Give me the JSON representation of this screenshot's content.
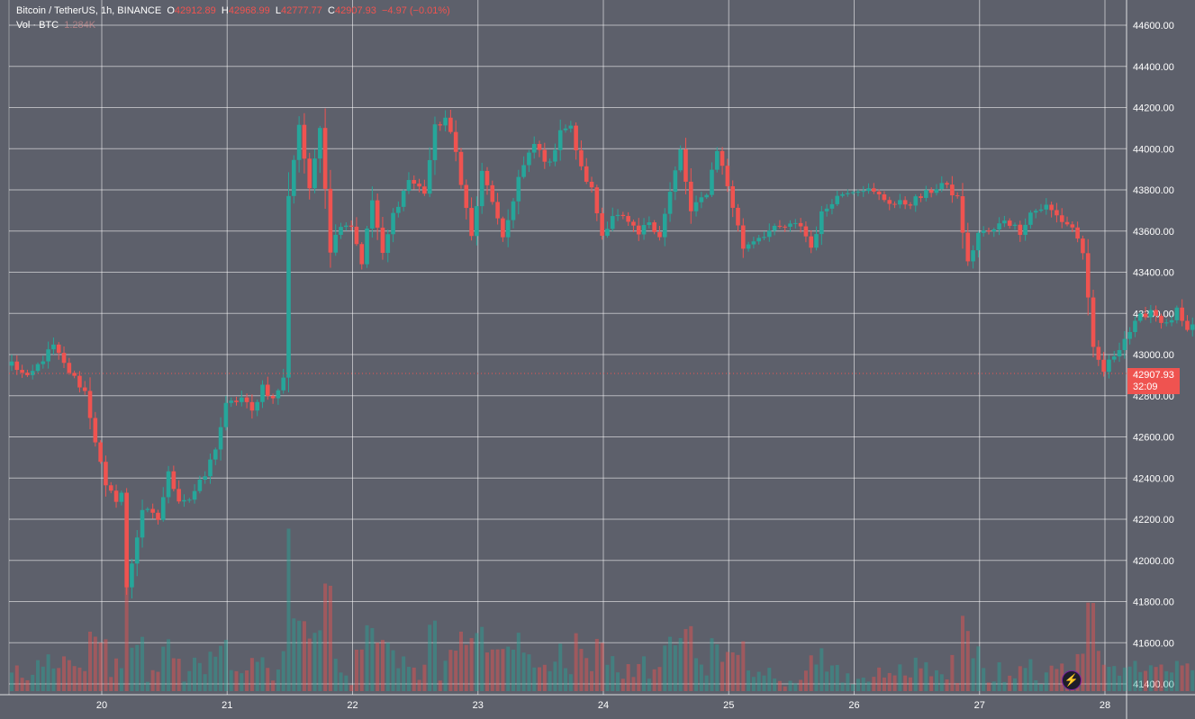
{
  "legend": {
    "symbol": "Bitcoin / TetherUS, 1h, BINANCE",
    "open_label": "O",
    "open_value": "42912.89",
    "high_label": "H",
    "high_value": "42968.99",
    "low_label": "L",
    "low_value": "42777.77",
    "close_label": "C",
    "close_value": "42907.93",
    "change": "−4.97 (−0.01%)",
    "vol_label": "Vol · BTC",
    "vol_value": "1.284K"
  },
  "last_price": {
    "price": "42907.93",
    "countdown": "32:09"
  },
  "colors": {
    "background": "#5d606b",
    "up": "#26a69a",
    "down": "#ef5350",
    "grid": "#ffffff",
    "text": "#ffffff"
  },
  "icons": {
    "flash_button": "lightning-bolt-icon"
  },
  "chart_data": {
    "type": "candlestick",
    "symbol": "Bitcoin / TetherUS",
    "interval": "1h",
    "exchange": "BINANCE",
    "x_tick_labels": [
      "20",
      "21",
      "22",
      "23",
      "24",
      "25",
      "26",
      "27",
      "28"
    ],
    "y_tick_labels": [
      "41400.00",
      "41600.00",
      "41800.00",
      "42000.00",
      "42200.00",
      "42400.00",
      "42600.00",
      "42800.00",
      "43000.00",
      "43200.00",
      "43400.00",
      "43600.00",
      "43800.00",
      "44000.00",
      "44200.00",
      "44400.00",
      "44600.00"
    ],
    "ylim": [
      41390,
      44660
    ],
    "grid": true,
    "axis_position": "right",
    "anchors": [
      [
        0,
        42960
      ],
      [
        3,
        42880
      ],
      [
        6,
        42980
      ],
      [
        8,
        43040
      ],
      [
        10,
        42950
      ],
      [
        14,
        42820
      ],
      [
        18,
        42350
      ],
      [
        20,
        42300
      ],
      [
        21,
        42330
      ],
      [
        22,
        41860
      ],
      [
        25,
        42250
      ],
      [
        28,
        42200
      ],
      [
        30,
        42420
      ],
      [
        32,
        42300
      ],
      [
        34,
        42300
      ],
      [
        37,
        42410
      ],
      [
        39,
        42550
      ],
      [
        41,
        42750
      ],
      [
        44,
        42790
      ],
      [
        46,
        42720
      ],
      [
        48,
        42850
      ],
      [
        50,
        42780
      ],
      [
        52,
        42880
      ],
      [
        53,
        43780
      ],
      [
        54,
        43950
      ],
      [
        55,
        44120
      ],
      [
        57,
        43790
      ],
      [
        59,
        44120
      ],
      [
        61,
        43510
      ],
      [
        63,
        43640
      ],
      [
        65,
        43630
      ],
      [
        67,
        43450
      ],
      [
        69,
        43750
      ],
      [
        71,
        43480
      ],
      [
        73,
        43680
      ],
      [
        76,
        43850
      ],
      [
        79,
        43790
      ],
      [
        81,
        44100
      ],
      [
        83,
        44150
      ],
      [
        85,
        43980
      ],
      [
        88,
        43570
      ],
      [
        90,
        43880
      ],
      [
        92,
        43750
      ],
      [
        94,
        43550
      ],
      [
        97,
        43860
      ],
      [
        100,
        44020
      ],
      [
        103,
        43920
      ],
      [
        105,
        44100
      ],
      [
        107,
        44100
      ],
      [
        109,
        43900
      ],
      [
        111,
        43800
      ],
      [
        113,
        43580
      ],
      [
        115,
        43680
      ],
      [
        117,
        43660
      ],
      [
        120,
        43580
      ],
      [
        122,
        43650
      ],
      [
        124,
        43580
      ],
      [
        128,
        43990
      ],
      [
        130,
        43690
      ],
      [
        133,
        43790
      ],
      [
        135,
        44000
      ],
      [
        137,
        43820
      ],
      [
        140,
        43520
      ],
      [
        142,
        43560
      ],
      [
        145,
        43600
      ],
      [
        148,
        43620
      ],
      [
        151,
        43630
      ],
      [
        153,
        43520
      ],
      [
        155,
        43680
      ],
      [
        157,
        43750
      ],
      [
        160,
        43800
      ],
      [
        163,
        43810
      ],
      [
        166,
        43770
      ],
      [
        169,
        43730
      ],
      [
        172,
        43740
      ],
      [
        175,
        43780
      ],
      [
        178,
        43830
      ],
      [
        181,
        43760
      ],
      [
        183,
        43440
      ],
      [
        185,
        43590
      ],
      [
        188,
        43600
      ],
      [
        190,
        43660
      ],
      [
        193,
        43600
      ],
      [
        195,
        43690
      ],
      [
        198,
        43720
      ],
      [
        201,
        43650
      ],
      [
        203,
        43620
      ],
      [
        205,
        43500
      ],
      [
        207,
        43020
      ],
      [
        209,
        42920
      ],
      [
        211,
        43000
      ],
      [
        213,
        43080
      ],
      [
        216,
        43180
      ],
      [
        218,
        43220
      ],
      [
        221,
        43140
      ],
      [
        223,
        43210
      ],
      [
        225,
        43100
      ],
      [
        227,
        43170
      ],
      [
        229,
        43650
      ],
      [
        231,
        43700
      ],
      [
        233,
        43650
      ],
      [
        235,
        43550
      ],
      [
        237,
        43450
      ],
      [
        239,
        43550
      ],
      [
        241,
        43420
      ],
      [
        243,
        43620
      ],
      [
        245,
        43600
      ],
      [
        247,
        43490
      ],
      [
        249,
        43530
      ],
      [
        251,
        43430
      ],
      [
        253,
        43450
      ],
      [
        255,
        42720
      ],
      [
        258,
        42660
      ],
      [
        260,
        42750
      ],
      [
        262,
        42450
      ],
      [
        264,
        42660
      ],
      [
        266,
        42450
      ],
      [
        268,
        42180
      ],
      [
        270,
        42040
      ],
      [
        272,
        42140
      ],
      [
        274,
        42160
      ],
      [
        276,
        42390
      ],
      [
        278,
        42480
      ],
      [
        280,
        42350
      ],
      [
        282,
        42460
      ],
      [
        284,
        42330
      ],
      [
        286,
        42250
      ],
      [
        288,
        42380
      ],
      [
        290,
        42450
      ],
      [
        292,
        42550
      ],
      [
        294,
        42780
      ],
      [
        296,
        43190
      ],
      [
        298,
        43050
      ],
      [
        299,
        42930
      ],
      [
        300,
        42908
      ]
    ],
    "volume_scale_btc": 1000,
    "volume_ylim_btc": [
      0,
      6000
    ],
    "last_price": 42907.93
  }
}
